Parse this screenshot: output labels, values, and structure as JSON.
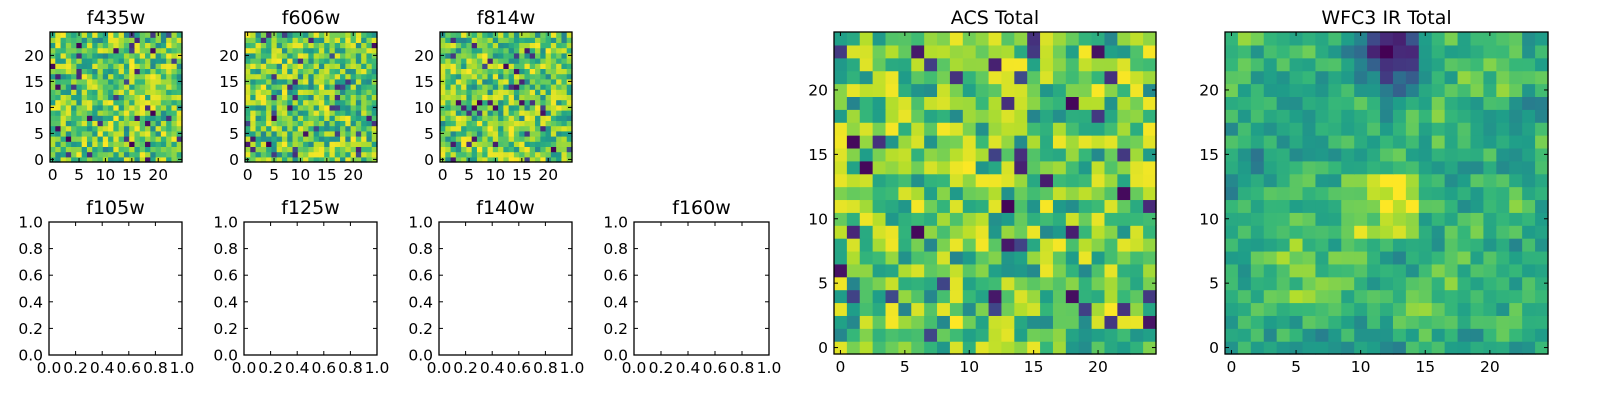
{
  "colors": {
    "colormap": "viridis",
    "empty_face": "#ffffff",
    "axis": "#000000"
  },
  "chart_data": [
    {
      "type": "heatmap",
      "title": "f435w",
      "grid_size": 25,
      "xticks": [
        "0",
        "5",
        "10",
        "15",
        "20"
      ],
      "yticks": [
        "0",
        "5",
        "10",
        "15",
        "20"
      ],
      "xlim": [
        -0.5,
        24.5
      ],
      "ylim": [
        -0.5,
        24.5
      ],
      "pattern": "pixel-noise",
      "seed": 11
    },
    {
      "type": "heatmap",
      "title": "f606w",
      "grid_size": 25,
      "xticks": [
        "0",
        "5",
        "10",
        "15",
        "20"
      ],
      "yticks": [
        "0",
        "5",
        "10",
        "15",
        "20"
      ],
      "xlim": [
        -0.5,
        24.5
      ],
      "ylim": [
        -0.5,
        24.5
      ],
      "pattern": "pixel-noise",
      "seed": 23
    },
    {
      "type": "heatmap",
      "title": "f814w",
      "grid_size": 25,
      "xticks": [
        "0",
        "5",
        "10",
        "15",
        "20"
      ],
      "yticks": [
        "0",
        "5",
        "10",
        "15",
        "20"
      ],
      "xlim": [
        -0.5,
        24.5
      ],
      "ylim": [
        -0.5,
        24.5
      ],
      "pattern": "pixel-noise",
      "seed": 37
    },
    {
      "type": "heatmap",
      "title": "f105w",
      "empty": true,
      "xticks": [
        "0.0",
        "0.2",
        "0.4",
        "0.6",
        "0.8",
        "1.0"
      ],
      "yticks": [
        "0.0",
        "0.2",
        "0.4",
        "0.6",
        "0.8",
        "1.0"
      ],
      "xlim": [
        0,
        1
      ],
      "ylim": [
        0,
        1
      ]
    },
    {
      "type": "heatmap",
      "title": "f125w",
      "empty": true,
      "xticks": [
        "0.0",
        "0.2",
        "0.4",
        "0.6",
        "0.8",
        "1.0"
      ],
      "yticks": [
        "0.0",
        "0.2",
        "0.4",
        "0.6",
        "0.8",
        "1.0"
      ],
      "xlim": [
        0,
        1
      ],
      "ylim": [
        0,
        1
      ]
    },
    {
      "type": "heatmap",
      "title": "f140w",
      "empty": true,
      "xticks": [
        "0.0",
        "0.2",
        "0.4",
        "0.6",
        "0.8",
        "1.0"
      ],
      "yticks": [
        "0.0",
        "0.2",
        "0.4",
        "0.6",
        "0.8",
        "1.0"
      ],
      "xlim": [
        0,
        1
      ],
      "ylim": [
        0,
        1
      ]
    },
    {
      "type": "heatmap",
      "title": "f160w",
      "empty": true,
      "xticks": [
        "0.0",
        "0.2",
        "0.4",
        "0.6",
        "0.8",
        "1.0"
      ],
      "yticks": [
        "0.0",
        "0.2",
        "0.4",
        "0.6",
        "0.8",
        "1.0"
      ],
      "xlim": [
        0,
        1
      ],
      "ylim": [
        0,
        1
      ]
    },
    {
      "type": "heatmap",
      "title": "ACS Total",
      "grid_size": 25,
      "xticks": [
        "0",
        "5",
        "10",
        "15",
        "20"
      ],
      "yticks": [
        "0",
        "5",
        "10",
        "15",
        "20"
      ],
      "xlim": [
        -0.5,
        24.5
      ],
      "ylim": [
        -0.5,
        24.5
      ],
      "pattern": "pixel-noise",
      "seed": 51
    },
    {
      "type": "heatmap",
      "title": "WFC3 IR Total",
      "grid_size": 25,
      "xticks": [
        "0",
        "5",
        "10",
        "15",
        "20"
      ],
      "yticks": [
        "0",
        "5",
        "10",
        "15",
        "20"
      ],
      "xlim": [
        -0.5,
        24.5
      ],
      "ylim": [
        -0.5,
        24.5
      ],
      "pattern": "smooth-blobs",
      "seed": 67
    }
  ]
}
